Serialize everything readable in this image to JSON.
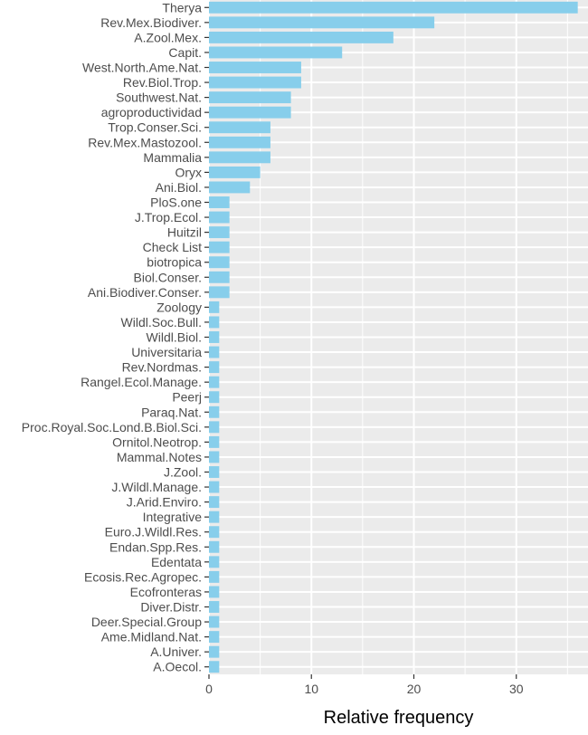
{
  "chart_data": {
    "type": "bar",
    "orientation": "horizontal",
    "xlabel": "Relative frequency",
    "ylabel": "",
    "xlim": [
      0,
      37
    ],
    "x_ticks": [
      0,
      10,
      20,
      30
    ],
    "grid": true,
    "background": "#ebebeb",
    "gridline_color": "#ffffff",
    "bar_color": "#87ceeb",
    "categories": [
      "Therya",
      "Rev.Mex.Biodiver.",
      "A.Zool.Mex.",
      "Capit.",
      "West.North.Ame.Nat.",
      "Rev.Biol.Trop.",
      "Southwest.Nat.",
      "agroproductividad",
      "Trop.Conser.Sci.",
      "Rev.Mex.Mastozool.",
      "Mammalia",
      "Oryx",
      "Ani.Biol.",
      "PloS.one",
      "J.Trop.Ecol.",
      "Huitzil",
      "Check List",
      "biotropica",
      "Biol.Conser.",
      "Ani.Biodiver.Conser.",
      "Zoology",
      "Wildl.Soc.Bull.",
      "Wildl.Biol.",
      "Universitaria",
      "Rev.Nordmas.",
      "Rangel.Ecol.Manage.",
      "Peerj",
      "Paraq.Nat.",
      "Proc.Royal.Soc.Lond.B.Biol.Sci.",
      "Ornitol.Neotrop.",
      "Mammal.Notes",
      "J.Zool.",
      "J.Wildl.Manage.",
      "J.Arid.Enviro.",
      "Integrative",
      "Euro.J.Wildl.Res.",
      "Endan.Spp.Res.",
      "Edentata",
      "Ecosis.Rec.Agropec.",
      "Ecofronteras",
      "Diver.Distr.",
      "Deer.Special.Group",
      "Ame.Midland.Nat.",
      "A.Univer.",
      "A.Oecol."
    ],
    "values": [
      36,
      22,
      18,
      13,
      9,
      9,
      8,
      8,
      6,
      6,
      6,
      5,
      4,
      2,
      2,
      2,
      2,
      2,
      2,
      2,
      1,
      1,
      1,
      1,
      1,
      1,
      1,
      1,
      1,
      1,
      1,
      1,
      1,
      1,
      1,
      1,
      1,
      1,
      1,
      1,
      1,
      1,
      1,
      1,
      1
    ]
  }
}
